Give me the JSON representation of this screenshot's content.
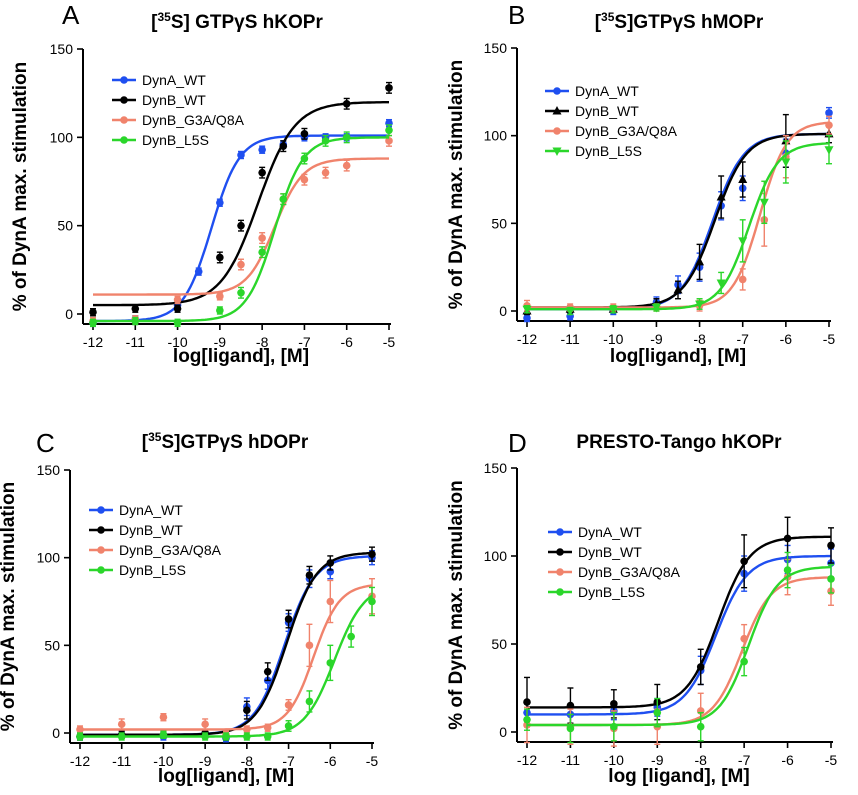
{
  "chart_data": [
    {
      "type": "scatter",
      "panel_letter": "A",
      "title_prefix": "[",
      "title_sup": "35",
      "title_rest": "S] GTPγS hKOPr",
      "xlabel": "log[ligand], [M]",
      "ylabel": "% of DynA max. stimulation",
      "xlim": [
        -12,
        -5
      ],
      "ylim": [
        0,
        150
      ],
      "xticks": [
        -12,
        -11,
        -10,
        -9,
        -8,
        -7,
        -6,
        -5
      ],
      "yticks": [
        0,
        50,
        100,
        150
      ],
      "legend_position": "top-left",
      "series": [
        {
          "name": "DynA_WT",
          "color": "#1f4ff0",
          "marker": "circle",
          "x": [
            -12,
            -11,
            -10,
            -9.5,
            -9,
            -8.5,
            -8,
            -7.5,
            -7,
            -6.5,
            -6,
            -5
          ],
          "y": [
            -5,
            -3,
            5,
            24,
            63,
            90,
            93,
            96,
            100,
            100,
            100,
            108
          ],
          "err": [
            2,
            2,
            2,
            2,
            2,
            2,
            2,
            2,
            2,
            2,
            2,
            2
          ],
          "fit": {
            "bottom": -4,
            "top": 101,
            "logec50": -9.2,
            "hill": 1.3
          }
        },
        {
          "name": "DynB_WT",
          "color": "#000000",
          "marker": "circle",
          "x": [
            -12,
            -11,
            -10,
            -9,
            -8.5,
            -8,
            -7.5,
            -7,
            -6,
            -5
          ],
          "y": [
            1,
            3,
            3,
            32,
            50,
            80,
            95,
            102,
            119,
            128
          ],
          "err": [
            2,
            2,
            2,
            3,
            3,
            3,
            3,
            3,
            3,
            3
          ],
          "fit": {
            "bottom": 5,
            "top": 120,
            "logec50": -8.1,
            "hill": 1.0
          }
        },
        {
          "name": "DynB_G3A/Q8A",
          "color": "#f0836c",
          "marker": "circle",
          "x": [
            -12,
            -11,
            -10,
            -9,
            -8.5,
            -8,
            -7.5,
            -7,
            -6.5,
            -6,
            -5
          ],
          "y": [
            -4,
            -3,
            8,
            10,
            28,
            43,
            65,
            76,
            80,
            84,
            98
          ],
          "err": [
            2,
            2,
            2,
            2,
            3,
            3,
            3,
            3,
            3,
            3,
            3
          ],
          "fit": {
            "bottom": 11,
            "top": 88,
            "logec50": -7.7,
            "hill": 1.3
          }
        },
        {
          "name": "DynB_L5S",
          "color": "#2bd62b",
          "marker": "circle",
          "x": [
            -12,
            -11,
            -10,
            -9,
            -8.5,
            -8,
            -7.5,
            -7,
            -6.5,
            -6,
            -5
          ],
          "y": [
            -5,
            -4,
            -5,
            2,
            12,
            35,
            65,
            88,
            98,
            100,
            104
          ],
          "err": [
            2,
            2,
            2,
            2,
            3,
            3,
            3,
            3,
            3,
            3,
            3
          ],
          "fit": {
            "bottom": -4,
            "top": 100,
            "logec50": -7.7,
            "hill": 1.3
          }
        }
      ]
    },
    {
      "type": "scatter",
      "panel_letter": "B",
      "title_prefix": "[",
      "title_sup": "35",
      "title_rest": "S]GTPγS hMOPr",
      "xlabel": "log[ligand], [M]",
      "ylabel": "% of DynA max. stimulation",
      "xlim": [
        -12,
        -5
      ],
      "ylim": [
        0,
        150
      ],
      "xticks": [
        -12,
        -11,
        -10,
        -9,
        -8,
        -7,
        -6,
        -5
      ],
      "yticks": [
        0,
        50,
        100,
        150
      ],
      "legend_position": "top-left",
      "series": [
        {
          "name": "DynA_WT",
          "color": "#1f4ff0",
          "marker": "circle",
          "x": [
            -12,
            -11,
            -10,
            -9,
            -8.5,
            -8,
            -7.5,
            -7,
            -6,
            -5
          ],
          "y": [
            -4,
            -3,
            0,
            5,
            15,
            25,
            60,
            70,
            90,
            113
          ],
          "err": [
            2,
            2,
            2,
            3,
            5,
            8,
            8,
            7,
            8,
            3
          ],
          "fit": {
            "bottom": 1,
            "top": 101,
            "logec50": -7.7,
            "hill": 1.2
          }
        },
        {
          "name": "DynB_WT",
          "color": "#000000",
          "marker": "triangle",
          "x": [
            -12,
            -11,
            -10,
            -9,
            -8.5,
            -8,
            -7.5,
            -7,
            -6,
            -5
          ],
          "y": [
            0,
            1,
            1,
            4,
            12,
            28,
            65,
            75,
            97,
            101
          ],
          "err": [
            2,
            2,
            2,
            3,
            5,
            10,
            12,
            10,
            15,
            5
          ],
          "fit": {
            "bottom": 2,
            "top": 101,
            "logec50": -7.65,
            "hill": 1.2
          }
        },
        {
          "name": "DynB_G3A/Q8A",
          "color": "#f0836c",
          "marker": "circle",
          "x": [
            -12,
            -11,
            -10,
            -9,
            -8,
            -7,
            -6.5,
            -6,
            -5
          ],
          "y": [
            3,
            2,
            2,
            2,
            3,
            18,
            52,
            88,
            106
          ],
          "err": [
            3,
            2,
            2,
            2,
            3,
            6,
            15,
            12,
            5
          ],
          "fit": {
            "bottom": 2,
            "top": 108,
            "logec50": -6.6,
            "hill": 1.4
          }
        },
        {
          "name": "DynB_L5S",
          "color": "#2bd62b",
          "marker": "triangle-down",
          "x": [
            -12,
            -11,
            -10,
            -9,
            -8,
            -7.5,
            -7,
            -6.5,
            -6,
            -5
          ],
          "y": [
            1,
            0,
            1,
            2,
            4,
            16,
            40,
            62,
            85,
            92
          ],
          "err": [
            2,
            2,
            2,
            2,
            3,
            6,
            12,
            12,
            12,
            8
          ],
          "fit": {
            "bottom": 1,
            "top": 96,
            "logec50": -6.85,
            "hill": 1.3
          }
        }
      ]
    },
    {
      "type": "scatter",
      "panel_letter": "C",
      "title_prefix": "[",
      "title_sup": "35",
      "title_rest": "S]GTPγS hDOPr",
      "xlabel": "log[ligand], [M]",
      "ylabel": "% of DynA max. stimulation",
      "xlim": [
        -12,
        -5
      ],
      "ylim": [
        0,
        150
      ],
      "xticks": [
        -12,
        -11,
        -10,
        -9,
        -8,
        -7,
        -6,
        -5
      ],
      "yticks": [
        0,
        50,
        100,
        150
      ],
      "legend_position": "top-left",
      "series": [
        {
          "name": "DynA_WT",
          "color": "#1f4ff0",
          "marker": "circle",
          "x": [
            -12,
            -11,
            -10,
            -9,
            -8.5,
            -8,
            -7.5,
            -7,
            -6.5,
            -6,
            -5
          ],
          "y": [
            -2,
            -1,
            -2,
            -1,
            -3,
            15,
            30,
            63,
            88,
            92,
            100
          ],
          "err": [
            2,
            2,
            2,
            2,
            2,
            5,
            5,
            5,
            5,
            4,
            4
          ],
          "fit": {
            "bottom": -1,
            "top": 101,
            "logec50": -7.1,
            "hill": 1.2
          }
        },
        {
          "name": "DynB_WT",
          "color": "#000000",
          "marker": "circle",
          "x": [
            -12,
            -11,
            -10,
            -9,
            -8.5,
            -8,
            -7.5,
            -7,
            -6.5,
            -6,
            -5
          ],
          "y": [
            -2,
            -1,
            -1,
            0,
            -2,
            13,
            35,
            65,
            90,
            97,
            102
          ],
          "err": [
            2,
            2,
            2,
            2,
            2,
            5,
            5,
            5,
            5,
            4,
            4
          ],
          "fit": {
            "bottom": -1,
            "top": 103,
            "logec50": -7.05,
            "hill": 1.2
          }
        },
        {
          "name": "DynB_G3A/Q8A",
          "color": "#f0836c",
          "marker": "circle",
          "x": [
            -12,
            -11,
            -10,
            -9,
            -8.5,
            -8,
            -7.5,
            -7,
            -6.5,
            -6,
            -5
          ],
          "y": [
            2,
            5,
            9,
            5,
            -1,
            2,
            3,
            16,
            50,
            75,
            78
          ],
          "err": [
            2,
            3,
            2,
            3,
            2,
            2,
            2,
            3,
            12,
            12,
            10
          ],
          "fit": {
            "bottom": 2,
            "top": 85,
            "logec50": -6.4,
            "hill": 1.4
          }
        },
        {
          "name": "DynB_L5S",
          "color": "#2bd62b",
          "marker": "circle",
          "x": [
            -12,
            -11,
            -10,
            -9,
            -8.5,
            -8,
            -7.5,
            -7,
            -6.5,
            -6,
            -5.5,
            -5
          ],
          "y": [
            -2,
            -2,
            -1,
            -2,
            -2,
            -2,
            -2,
            4,
            18,
            40,
            55,
            75
          ],
          "err": [
            2,
            2,
            2,
            2,
            2,
            2,
            2,
            3,
            6,
            10,
            6,
            8
          ],
          "fit": {
            "bottom": -2,
            "top": 85,
            "logec50": -5.9,
            "hill": 1.2
          }
        }
      ]
    },
    {
      "type": "scatter",
      "panel_letter": "D",
      "title_prefix": "",
      "title_sup": "",
      "title_rest": "PRESTO-Tango hKOPr",
      "xlabel": "log [ligand], [M]",
      "ylabel": "% of DynA max. stimulation",
      "xlim": [
        -12,
        -5
      ],
      "ylim": [
        0,
        150
      ],
      "xticks": [
        -12,
        -11,
        -10,
        -9,
        -8,
        -7,
        -6,
        -5
      ],
      "yticks": [
        0,
        50,
        100,
        150
      ],
      "legend_position": "top-left",
      "series": [
        {
          "name": "DynA_WT",
          "color": "#1f4ff0",
          "marker": "circle",
          "x": [
            -12,
            -11,
            -10,
            -9,
            -8,
            -7,
            -6,
            -5
          ],
          "y": [
            11,
            10,
            12,
            14,
            35,
            90,
            98,
            96
          ],
          "err": [
            5,
            5,
            5,
            5,
            8,
            10,
            8,
            8
          ],
          "fit": {
            "bottom": 10,
            "top": 100,
            "logec50": -7.65,
            "hill": 1.2
          }
        },
        {
          "name": "DynB_WT",
          "color": "#000000",
          "marker": "circle",
          "x": [
            -12,
            -11,
            -10,
            -9,
            -8,
            -7,
            -6,
            -5
          ],
          "y": [
            17,
            15,
            16,
            17,
            37,
            97,
            110,
            106
          ],
          "err": [
            14,
            10,
            8,
            10,
            10,
            15,
            12,
            10
          ],
          "fit": {
            "bottom": 14,
            "top": 111,
            "logec50": -7.6,
            "hill": 1.2
          }
        },
        {
          "name": "DynB_G3A/Q8A",
          "color": "#f0836c",
          "marker": "circle",
          "x": [
            -12,
            -11,
            -10,
            -9,
            -8,
            -7,
            -6,
            -5
          ],
          "y": [
            4,
            3,
            2,
            3,
            12,
            53,
            88,
            80
          ],
          "err": [
            10,
            10,
            10,
            10,
            10,
            8,
            10,
            8
          ],
          "fit": {
            "bottom": 4,
            "top": 88,
            "logec50": -7.05,
            "hill": 1.3
          }
        },
        {
          "name": "DynB_L5S",
          "color": "#2bd62b",
          "marker": "circle",
          "x": [
            -12,
            -11,
            -10,
            -9,
            -8,
            -7,
            -6,
            -5
          ],
          "y": [
            7,
            2,
            3,
            11,
            3,
            40,
            92,
            87
          ],
          "err": [
            6,
            8,
            8,
            8,
            8,
            8,
            10,
            8
          ],
          "fit": {
            "bottom": 4,
            "top": 94,
            "logec50": -6.9,
            "hill": 1.3
          }
        }
      ]
    }
  ]
}
